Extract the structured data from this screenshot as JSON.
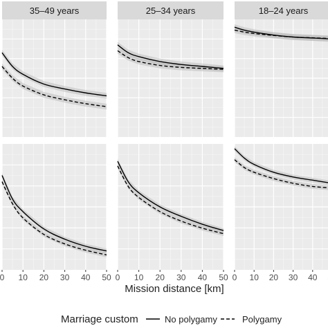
{
  "chart_data": {
    "type": "line",
    "title": "",
    "xlabel": "Mission distance [km]",
    "ylabel": "",
    "xlim": [
      0,
      50
    ],
    "ylim": [
      0,
      1
    ],
    "x_ticks": [
      0,
      10,
      20,
      30,
      40,
      50
    ],
    "x_tick_labels": [
      "0",
      "10",
      "20",
      "30",
      "40",
      "50"
    ],
    "grid": true,
    "legend": {
      "title": "Marriage custom",
      "position": "bottom",
      "entries": [
        {
          "label": "No polygamy",
          "style": "solid"
        },
        {
          "label": "Polygamy",
          "style": "dashed"
        }
      ]
    },
    "facet_columns": [
      "35–49 years",
      "25–34 years",
      "18–24 years"
    ],
    "panels": [
      {
        "row": 1,
        "col": 1,
        "strip": "35–49 years",
        "series": [
          {
            "name": "No polygamy",
            "style": "solid",
            "x": [
              0,
              5,
              10,
              20,
              30,
              40,
              50
            ],
            "y": [
              0.73,
              0.66,
              0.62,
              0.57,
              0.545,
              0.525,
              0.51
            ]
          },
          {
            "name": "Polygamy",
            "style": "dashed",
            "x": [
              0,
              5,
              10,
              20,
              30,
              40,
              50
            ],
            "y": [
              0.66,
              0.6,
              0.56,
              0.515,
              0.49,
              0.47,
              0.455
            ]
          }
        ]
      },
      {
        "row": 1,
        "col": 2,
        "strip": "25–34 years",
        "series": [
          {
            "name": "No polygamy",
            "style": "solid",
            "x": [
              0,
              5,
              10,
              20,
              30,
              40,
              50
            ],
            "y": [
              0.77,
              0.73,
              0.71,
              0.685,
              0.67,
              0.66,
              0.65
            ]
          },
          {
            "name": "Polygamy",
            "style": "dashed",
            "x": [
              0,
              5,
              10,
              20,
              30,
              40,
              50
            ],
            "y": [
              0.74,
              0.705,
              0.685,
              0.665,
              0.655,
              0.65,
              0.645
            ]
          }
        ]
      },
      {
        "row": 1,
        "col": 3,
        "strip": "18–24 years",
        "series": [
          {
            "name": "No polygamy",
            "style": "solid",
            "x": [
              0,
              5,
              10,
              20,
              30,
              40,
              50
            ],
            "y": [
              0.86,
              0.845,
              0.835,
              0.82,
              0.81,
              0.805,
              0.8
            ]
          },
          {
            "name": "Polygamy",
            "style": "dashed",
            "x": [
              0,
              5,
              10,
              20,
              30,
              40,
              50
            ],
            "y": [
              0.845,
              0.835,
              0.828,
              0.818,
              0.81,
              0.806,
              0.802
            ]
          }
        ]
      },
      {
        "row": 2,
        "col": 1,
        "strip": "",
        "series": [
          {
            "name": "No polygamy",
            "style": "solid",
            "x": [
              0,
              5,
              10,
              20,
              30,
              40,
              50
            ],
            "y": [
              0.8,
              0.65,
              0.57,
              0.46,
              0.395,
              0.35,
              0.32
            ]
          },
          {
            "name": "Polygamy",
            "style": "dashed",
            "x": [
              0,
              5,
              10,
              20,
              30,
              40,
              50
            ],
            "y": [
              0.76,
              0.62,
              0.53,
              0.425,
              0.365,
              0.325,
              0.295
            ]
          }
        ]
      },
      {
        "row": 2,
        "col": 2,
        "strip": "",
        "series": [
          {
            "name": "No polygamy",
            "style": "solid",
            "x": [
              0,
              5,
              10,
              20,
              30,
              40,
              50
            ],
            "y": [
              0.89,
              0.76,
              0.69,
              0.6,
              0.54,
              0.49,
              0.45
            ]
          },
          {
            "name": "Polygamy",
            "style": "dashed",
            "x": [
              0,
              5,
              10,
              20,
              30,
              40,
              50
            ],
            "y": [
              0.86,
              0.73,
              0.66,
              0.57,
              0.51,
              0.465,
              0.43
            ]
          }
        ]
      },
      {
        "row": 2,
        "col": 3,
        "strip": "",
        "series": [
          {
            "name": "No polygamy",
            "style": "solid",
            "x": [
              0,
              5,
              10,
              20,
              30,
              40,
              50
            ],
            "y": [
              0.97,
              0.91,
              0.87,
              0.82,
              0.79,
              0.77,
              0.75
            ]
          },
          {
            "name": "Polygamy",
            "style": "dashed",
            "x": [
              0,
              5,
              10,
              20,
              30,
              40,
              50
            ],
            "y": [
              0.9,
              0.85,
              0.82,
              0.78,
              0.75,
              0.73,
              0.72
            ]
          }
        ]
      }
    ]
  }
}
